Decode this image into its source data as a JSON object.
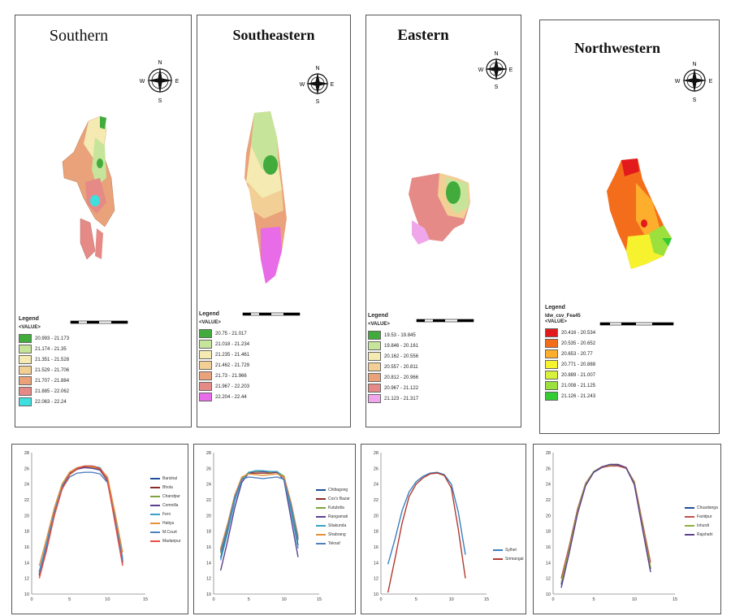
{
  "maps": [
    {
      "title": "Southern",
      "legend_heading": "Legend",
      "legend_field": "<VALUE>",
      "legend_classes": [
        {
          "label": "20.993 - 21.173",
          "color": "#41ab3c"
        },
        {
          "label": "21.174 - 21.35",
          "color": "#c7e59a"
        },
        {
          "label": "21.351 - 21.528",
          "color": "#f4eab2"
        },
        {
          "label": "21.529 - 21.706",
          "color": "#f2cf94"
        },
        {
          "label": "21.707 - 21.884",
          "color": "#e9a27a"
        },
        {
          "label": "21.885 - 22.062",
          "color": "#e58a86"
        },
        {
          "label": "22.063 - 22.24",
          "color": "#3de0df"
        }
      ]
    },
    {
      "title": "Southeastern",
      "legend_heading": "Legend",
      "legend_field": "<VALUE>",
      "legend_classes": [
        {
          "label": "20.75 - 21.017",
          "color": "#41ab3c"
        },
        {
          "label": "21.018 - 21.234",
          "color": "#c7e59a"
        },
        {
          "label": "21.235 - 21.461",
          "color": "#f4eab2"
        },
        {
          "label": "21.462 - 21.729",
          "color": "#f2cf94"
        },
        {
          "label": "21.73 - 21.966",
          "color": "#e9a27a"
        },
        {
          "label": "21.967 - 22.203",
          "color": "#e58a86"
        },
        {
          "label": "22.204 - 22.44",
          "color": "#e86be8"
        }
      ]
    },
    {
      "title": "Eastern",
      "legend_heading": "Legend",
      "legend_field": "<VALUE>",
      "legend_classes": [
        {
          "label": "19.53 - 19.845",
          "color": "#41ab3c"
        },
        {
          "label": "19.846 - 20.161",
          "color": "#c7e59a"
        },
        {
          "label": "20.162 - 20.556",
          "color": "#f4eab2"
        },
        {
          "label": "20.557 - 20.811",
          "color": "#f2cf94"
        },
        {
          "label": "20.812 - 20.966",
          "color": "#e9a27a"
        },
        {
          "label": "20.967 - 21.122",
          "color": "#e58a86"
        },
        {
          "label": "21.123 - 21.317",
          "color": "#f0a6ea"
        }
      ]
    },
    {
      "title": "Northwestern",
      "legend_heading": "Legend",
      "legend_field": "Idw_csv_Fea45",
      "legend_field2": "<VALUE>",
      "legend_classes": [
        {
          "label": "20.416 - 20.534",
          "color": "#e31a1c"
        },
        {
          "label": "20.535 - 20.652",
          "color": "#f46d1b"
        },
        {
          "label": "20.653 - 20.77",
          "color": "#fdae2d"
        },
        {
          "label": "20.771 - 20.888",
          "color": "#f7f22e"
        },
        {
          "label": "20.889 - 21.007",
          "color": "#d6f03b"
        },
        {
          "label": "21.008 - 21.125",
          "color": "#9be03d"
        },
        {
          "label": "21.126 - 21.243",
          "color": "#33cc33"
        }
      ]
    }
  ],
  "chart_data": [
    {
      "type": "line",
      "xlim": [
        0,
        15
      ],
      "ylim": [
        10,
        28
      ],
      "xticks": [
        0,
        5,
        10,
        15
      ],
      "yticks": [
        10,
        12,
        14,
        16,
        18,
        20,
        22,
        24,
        26,
        28
      ],
      "x": [
        1,
        2,
        3,
        4,
        5,
        6,
        7,
        8,
        9,
        10,
        11,
        12
      ],
      "series": [
        {
          "name": "Barishal",
          "color": "#1f4e9c",
          "values": [
            12.8,
            16.5,
            20.6,
            23.7,
            25.4,
            26.0,
            26.2,
            26.2,
            26.0,
            24.6,
            19.6,
            14.4
          ]
        },
        {
          "name": "Bhola",
          "color": "#8b2a2a",
          "values": [
            12.5,
            16.2,
            20.4,
            23.5,
            25.3,
            26.0,
            26.2,
            26.1,
            25.9,
            24.5,
            19.4,
            14.1
          ]
        },
        {
          "name": "Chandpur",
          "color": "#7da33a",
          "values": [
            12.3,
            16.0,
            20.2,
            23.4,
            25.2,
            25.9,
            26.1,
            26.1,
            25.8,
            24.4,
            19.2,
            13.9
          ]
        },
        {
          "name": "Comnilla",
          "color": "#5e3f8f",
          "values": [
            12.4,
            16.1,
            20.3,
            23.5,
            25.3,
            25.9,
            26.1,
            26.0,
            25.8,
            24.4,
            19.3,
            14.0
          ]
        },
        {
          "name": "Feni",
          "color": "#3aa0c8",
          "values": [
            12.9,
            16.6,
            20.7,
            23.8,
            25.5,
            26.1,
            26.3,
            26.3,
            26.1,
            24.8,
            19.8,
            14.6
          ]
        },
        {
          "name": "Hatiya",
          "color": "#e69138",
          "values": [
            13.6,
            17.2,
            21.0,
            24.0,
            25.5,
            26.1,
            26.3,
            26.2,
            26.0,
            24.9,
            20.3,
            15.3
          ]
        },
        {
          "name": "M.Court",
          "color": "#4f81bd",
          "values": [
            12.6,
            16.3,
            20.4,
            23.4,
            24.9,
            25.4,
            25.5,
            25.5,
            25.3,
            24.2,
            19.5,
            14.3
          ]
        },
        {
          "name": "Madaripur",
          "color": "#e84a3f",
          "values": [
            12.0,
            15.7,
            20.0,
            23.3,
            25.2,
            26.0,
            26.3,
            26.3,
            26.0,
            24.5,
            19.0,
            13.6
          ]
        }
      ]
    },
    {
      "type": "line",
      "xlim": [
        0,
        15
      ],
      "ylim": [
        10,
        28
      ],
      "xticks": [
        0,
        5,
        10,
        15
      ],
      "yticks": [
        10,
        12,
        14,
        16,
        18,
        20,
        22,
        24,
        26,
        28
      ],
      "x": [
        1,
        2,
        3,
        4,
        5,
        6,
        7,
        8,
        9,
        10,
        11,
        12
      ],
      "series": [
        {
          "name": "Chittagong",
          "color": "#1f4e9c",
          "values": [
            14.6,
            18.1,
            22.0,
            24.6,
            25.5,
            25.6,
            25.6,
            25.6,
            25.6,
            24.9,
            20.8,
            16.2
          ]
        },
        {
          "name": "Cox's Bazar",
          "color": "#8b2a2a",
          "values": [
            15.6,
            18.8,
            22.4,
            24.8,
            25.4,
            25.4,
            25.4,
            25.4,
            25.5,
            25.0,
            21.5,
            17.1
          ]
        },
        {
          "name": "Kutubdia",
          "color": "#7da33a",
          "values": [
            15.2,
            18.5,
            22.2,
            24.7,
            25.5,
            25.6,
            25.6,
            25.5,
            25.6,
            25.0,
            21.2,
            16.8
          ]
        },
        {
          "name": "Rangamati",
          "color": "#5e3f8f",
          "values": [
            13.0,
            16.8,
            21.0,
            24.2,
            25.4,
            25.7,
            25.6,
            25.6,
            25.5,
            24.5,
            19.6,
            14.7
          ]
        },
        {
          "name": "Sitakunda",
          "color": "#3aa0c8",
          "values": [
            14.3,
            17.8,
            21.8,
            24.5,
            25.5,
            25.7,
            25.7,
            25.6,
            25.6,
            24.8,
            20.5,
            15.8
          ]
        },
        {
          "name": "Shabrang",
          "color": "#e69138",
          "values": [
            15.8,
            19.0,
            22.6,
            24.9,
            25.3,
            25.2,
            25.1,
            25.2,
            25.3,
            24.9,
            21.7,
            17.4
          ]
        },
        {
          "name": "Teknaf",
          "color": "#4f81bd",
          "values": [
            15.4,
            18.6,
            22.3,
            24.6,
            24.9,
            24.8,
            24.7,
            24.8,
            24.9,
            24.6,
            21.3,
            17.0
          ]
        }
      ]
    },
    {
      "type": "line",
      "xlim": [
        0,
        15
      ],
      "ylim": [
        10,
        28
      ],
      "xticks": [
        0,
        5,
        10,
        15
      ],
      "yticks": [
        10,
        12,
        14,
        16,
        18,
        20,
        22,
        24,
        26,
        28
      ],
      "x": [
        1,
        2,
        3,
        4,
        5,
        6,
        7,
        8,
        9,
        10,
        11,
        12
      ],
      "series": [
        {
          "name": "Sylhet",
          "color": "#3a7fc0",
          "values": [
            13.8,
            17.0,
            20.6,
            23.0,
            24.3,
            25.0,
            25.4,
            25.5,
            25.2,
            24.0,
            20.4,
            15.0
          ]
        },
        {
          "name": "Srimangal",
          "color": "#b03a2e",
          "values": [
            10.2,
            14.5,
            19.0,
            22.4,
            24.0,
            24.8,
            25.3,
            25.4,
            25.1,
            23.5,
            18.2,
            12.0
          ]
        }
      ]
    },
    {
      "type": "line",
      "xlim": [
        0,
        15
      ],
      "ylim": [
        10,
        28
      ],
      "xticks": [
        0,
        5,
        10,
        15
      ],
      "yticks": [
        10,
        12,
        14,
        16,
        18,
        20,
        22,
        24,
        26,
        28
      ],
      "x": [
        1,
        2,
        3,
        4,
        5,
        6,
        7,
        8,
        9,
        10,
        11,
        12
      ],
      "series": [
        {
          "name": "Chuadanga",
          "color": "#1f4e9c",
          "values": [
            11.2,
            15.6,
            20.4,
            23.9,
            25.5,
            26.1,
            26.4,
            26.4,
            26.0,
            24.0,
            18.5,
            13.2
          ]
        },
        {
          "name": "Faridpur",
          "color": "#c0504d",
          "values": [
            12.0,
            16.2,
            20.8,
            24.1,
            25.6,
            26.1,
            26.3,
            26.3,
            26.0,
            24.3,
            19.1,
            14.0
          ]
        },
        {
          "name": "Ishurdi",
          "color": "#8fad3c",
          "values": [
            11.5,
            15.8,
            20.5,
            24.0,
            25.6,
            26.2,
            26.4,
            26.5,
            26.1,
            24.1,
            18.7,
            13.4
          ]
        },
        {
          "name": "Rajshahi",
          "color": "#5e3f8f",
          "values": [
            10.8,
            15.3,
            20.2,
            23.8,
            25.5,
            26.2,
            26.5,
            26.5,
            26.1,
            23.9,
            18.3,
            12.8
          ]
        }
      ]
    }
  ]
}
